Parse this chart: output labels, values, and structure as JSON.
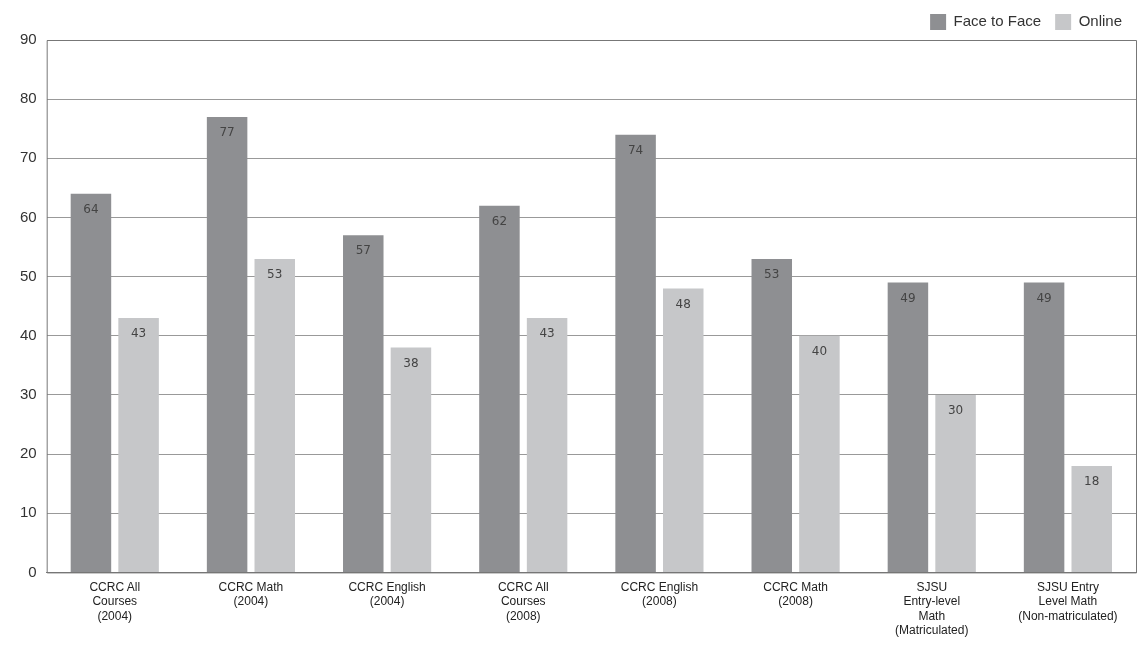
{
  "chart_data": {
    "type": "bar",
    "categories": [
      "CCRC All Courses (2004)",
      "CCRC Math (2004)",
      "CCRC English (2004)",
      "CCRC All Courses (2008)",
      "CCRC English (2008)",
      "CCRC Math (2008)",
      "SJSU Entry-level Math (Matriculated)",
      "SJSU Entry Level Math (Non-matriculated)"
    ],
    "series": [
      {
        "name": "Face to Face",
        "color": "#8e8f92",
        "values": [
          64,
          77,
          57,
          62,
          74,
          53,
          49,
          49
        ]
      },
      {
        "name": "Online",
        "color": "#c6c7c9",
        "values": [
          43,
          53,
          38,
          43,
          48,
          40,
          30,
          18
        ]
      }
    ],
    "ylim": [
      0,
      90
    ],
    "yticks": [
      0,
      10,
      20,
      30,
      40,
      50,
      60,
      70,
      80,
      90
    ],
    "grid": "y",
    "legend": "top right",
    "data_labels": true
  }
}
